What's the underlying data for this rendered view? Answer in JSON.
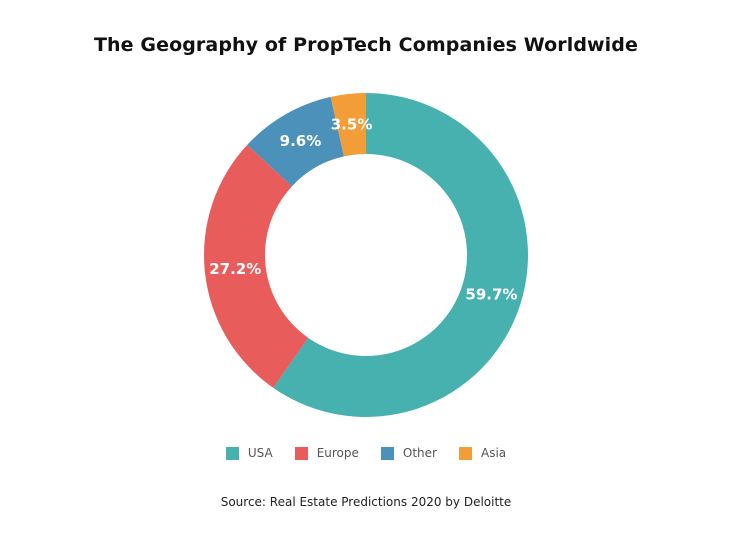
{
  "chart_data": {
    "type": "pie",
    "title": "The Geography of PropTech Companies Worldwide",
    "donut": true,
    "categories": [
      "USA",
      "Europe",
      "Other",
      "Asia"
    ],
    "values": [
      59.7,
      27.2,
      9.6,
      3.5
    ],
    "value_labels": [
      "59.7%",
      "27.2%",
      "9.6%",
      "3.5%"
    ],
    "colors": [
      "#46B1AF",
      "#E95C5C",
      "#4B91BA",
      "#F29D38"
    ],
    "legend_position": "bottom",
    "source": "Source: Real Estate Predictions 2020 by Deloitte"
  }
}
